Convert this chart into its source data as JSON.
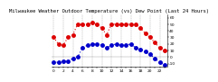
{
  "title": "   M  l  w  a  u  k  e  e     W  e  a  t  h  e  r     O  u  t  d  o  o  r     T  e  m  p  e  r  a  t  u  r  e     ( v s )     D  e  w     P  o  i  n  t     ( L  a  s  t     2  4     H  o  u  r  s  )",
  "title_short": "Milwaukee Weather Outdoor Temperature (vs) Dew Point (Last 24 Hours)",
  "temp_color": "#dd0000",
  "dew_color": "#0000cc",
  "background_color": "#ffffff",
  "grid_color": "#999999",
  "ylim": [
    -15,
    65
  ],
  "ytick_values": [
    60,
    50,
    40,
    30,
    20,
    10,
    0,
    -10
  ],
  "ytick_labels": [
    "60",
    "50",
    "40",
    "30",
    "20",
    "10",
    "0",
    "-10"
  ],
  "temp_values": [
    30,
    20,
    18,
    30,
    34,
    50,
    50,
    50,
    52,
    50,
    44,
    34,
    50,
    50,
    50,
    50,
    50,
    50,
    44,
    36,
    30,
    22,
    14,
    10
  ],
  "dew_values": [
    -8,
    -8,
    -6,
    -6,
    -2,
    0,
    14,
    18,
    20,
    20,
    18,
    14,
    18,
    20,
    18,
    18,
    20,
    14,
    12,
    8,
    4,
    -2,
    -8,
    -12
  ],
  "n_points": 24,
  "x_labels": [
    "0",
    "",
    "2",
    "",
    "4",
    "",
    "6",
    "",
    "8",
    "",
    "10",
    "",
    "12",
    "",
    "14",
    "",
    "16",
    "",
    "18",
    "",
    "20",
    "",
    "22",
    ""
  ],
  "title_fontsize": 4.0,
  "tick_fontsize": 3.2,
  "marker_size": 2.5,
  "line_width": 0.8
}
